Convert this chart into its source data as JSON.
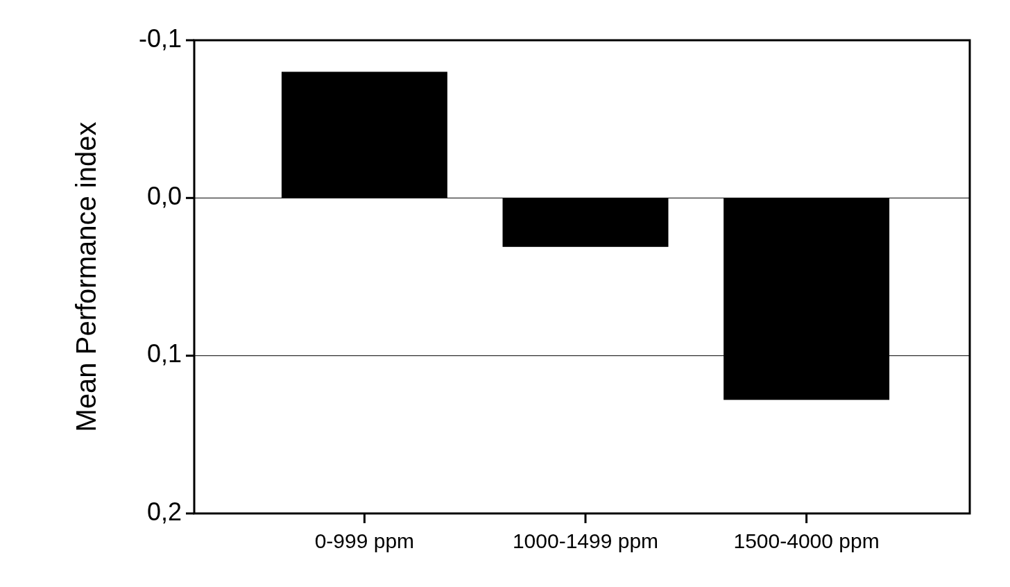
{
  "chart_data": {
    "type": "bar",
    "ylabel": "Mean Performance index",
    "categories": [
      "0-999 ppm",
      "1000-1499 ppm",
      "1500-4000 ppm"
    ],
    "values": [
      -0.08,
      0.031,
      0.128
    ],
    "color": "#000000",
    "ylim": [
      0.2,
      -0.1
    ],
    "yticks": [
      {
        "value": -0.1,
        "label": "-0,1"
      },
      {
        "value": 0,
        "label": "0,0"
      },
      {
        "value": 0.1,
        "label": "0,1"
      },
      {
        "value": 0.2,
        "label": "0,2"
      }
    ],
    "grid": "y"
  }
}
